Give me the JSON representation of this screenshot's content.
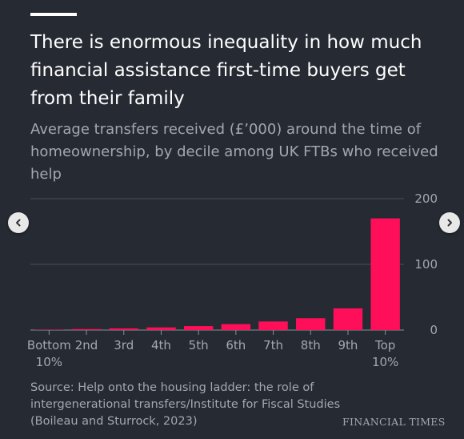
{
  "title": "There is enormous inequality in how much financial assistance first-time buyers get from their family",
  "subtitle": "Average transfers received (£’000) around the time of homeownership, by decile among UK FTBs who received help",
  "source": "Source: Help onto the housing ladder: the role of intergenerational transfers/Institute for Fiscal Studies (Boileau and Sturrock, 2023)",
  "brand": "FINANCIAL TIMES",
  "colors": {
    "background": "#262a33",
    "bar": "#ff0f59",
    "text": "#ffffff",
    "muted": "#a3a7b0",
    "grid": "#4a4e57"
  },
  "icons": {
    "prev": "chevron-left-icon",
    "next": "chevron-right-icon"
  },
  "chart_data": {
    "type": "bar",
    "categories": [
      [
        "Bottom",
        "10%"
      ],
      [
        "2nd"
      ],
      [
        "3rd"
      ],
      [
        "4th"
      ],
      [
        "5th"
      ],
      [
        "6th"
      ],
      [
        "7th"
      ],
      [
        "8th"
      ],
      [
        "9th"
      ],
      [
        "Top",
        "10%"
      ]
    ],
    "values": [
      0.5,
      1.5,
      2.5,
      4,
      6,
      9,
      13,
      18,
      33,
      170
    ],
    "yticks": [
      0,
      100,
      200
    ],
    "ylim": [
      0,
      200
    ],
    "grid": true,
    "yaxis_side": "right"
  }
}
